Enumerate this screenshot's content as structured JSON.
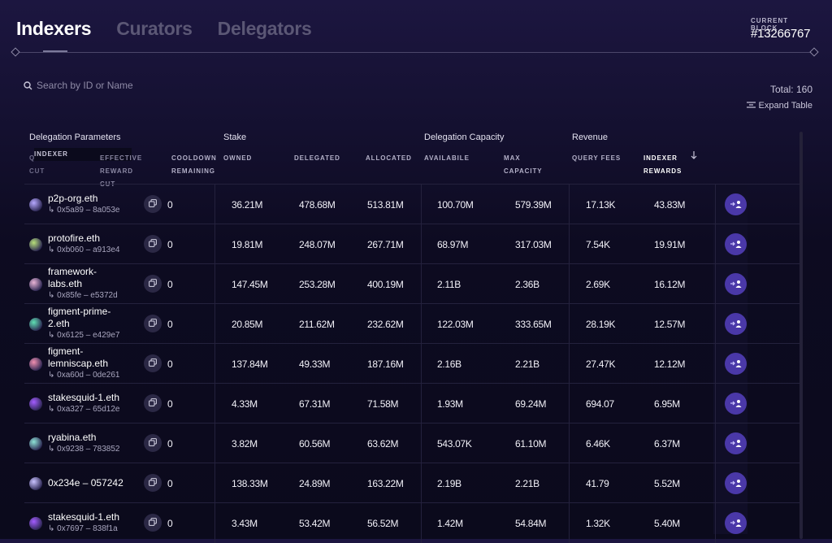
{
  "tabs": [
    {
      "label": "Indexers",
      "active": true
    },
    {
      "label": "Curators",
      "active": false
    },
    {
      "label": "Delegators",
      "active": false
    }
  ],
  "current_block": {
    "label": "CURRENT BLOCK",
    "value": "#13266767"
  },
  "search": {
    "placeholder": "Search by ID or Name"
  },
  "total": "Total: 160",
  "expand_table": "Expand Table",
  "groups": {
    "delegation_parameters": "Delegation Parameters",
    "stake": "Stake",
    "delegation_capacity": "Delegation Capacity",
    "revenue": "Revenue"
  },
  "columns": {
    "indexer": "INDEXER",
    "query_cut": "QUERY FEE CUT",
    "effective_reward_cut": "EFFECTIVE REWARD CUT",
    "cooldown_remaining": "COOLDOWN REMAINING",
    "owned": "OWNED",
    "delegated": "DELEGATED",
    "allocated": "ALLOCATED",
    "available": "AVAILABILE",
    "max_capacity": "MAX CAPACITY",
    "query_fees": "QUERY FEES",
    "indexer_rewards": "INDEXER REWARDS"
  },
  "sort_icon": "arrow-down-icon",
  "rows": [
    {
      "name": "p2p-org.eth",
      "name2": "",
      "address": "↳ 0x5a89 – 8a053e",
      "avatar": "#b6a8ff",
      "cooldown": "0",
      "owned": "36.21M",
      "delegated": "478.68M",
      "allocated": "513.81M",
      "available": "100.70M",
      "max_capacity": "579.39M",
      "query_fees": "17.13K",
      "indexer_rewards": "43.83M"
    },
    {
      "name": "protofire.eth",
      "name2": "",
      "address": "↳ 0xb060 – a913e4",
      "avatar": "#b7e07a",
      "cooldown": "0",
      "owned": "19.81M",
      "delegated": "248.07M",
      "allocated": "267.71M",
      "available": "68.97M",
      "max_capacity": "317.03M",
      "query_fees": "7.54K",
      "indexer_rewards": "19.91M"
    },
    {
      "name": "framework-",
      "name2": "labs.eth",
      "address": "↳ 0x85fe – e5372d",
      "avatar": "#e9b4d6",
      "cooldown": "0",
      "owned": "147.45M",
      "delegated": "253.28M",
      "allocated": "400.19M",
      "available": "2.11B",
      "max_capacity": "2.36B",
      "query_fees": "2.69K",
      "indexer_rewards": "16.12M"
    },
    {
      "name": "figment-prime-",
      "name2": "2.eth",
      "address": "↳ 0x6125 – e429e7",
      "avatar": "#5fe0b3",
      "cooldown": "0",
      "owned": "20.85M",
      "delegated": "211.62M",
      "allocated": "232.62M",
      "available": "122.03M",
      "max_capacity": "333.65M",
      "query_fees": "28.19K",
      "indexer_rewards": "12.57M"
    },
    {
      "name": "figment-",
      "name2": "lemniscap.eth",
      "address": "↳ 0xa60d – 0de261",
      "avatar": "#f08fb0",
      "cooldown": "0",
      "owned": "137.84M",
      "delegated": "49.33M",
      "allocated": "187.16M",
      "available": "2.16B",
      "max_capacity": "2.21B",
      "query_fees": "27.47K",
      "indexer_rewards": "12.12M"
    },
    {
      "name": "stakesquid-1.eth",
      "name2": "",
      "address": "↳ 0xa327 – 65d12e",
      "avatar": "#a35cff",
      "cooldown": "0",
      "owned": "4.33M",
      "delegated": "67.31M",
      "allocated": "71.58M",
      "available": "1.93M",
      "max_capacity": "69.24M",
      "query_fees": "694.07",
      "indexer_rewards": "6.95M"
    },
    {
      "name": "ryabina.eth",
      "name2": "",
      "address": "↳ 0x9238 – 783852",
      "avatar": "#8ee3d6",
      "cooldown": "0",
      "owned": "3.82M",
      "delegated": "60.56M",
      "allocated": "63.62M",
      "available": "543.07K",
      "max_capacity": "61.10M",
      "query_fees": "6.46K",
      "indexer_rewards": "6.37M"
    },
    {
      "name": "0x234e – 057242",
      "name2": "",
      "address": "",
      "avatar": "#c9c2ff",
      "cooldown": "0",
      "owned": "138.33M",
      "delegated": "24.89M",
      "allocated": "163.22M",
      "available": "2.19B",
      "max_capacity": "2.21B",
      "query_fees": "41.79",
      "indexer_rewards": "5.52M"
    },
    {
      "name": "stakesquid-1.eth",
      "name2": "",
      "address": "↳ 0x7697 – 838f1a",
      "avatar": "#a35cff",
      "cooldown": "0",
      "owned": "3.43M",
      "delegated": "53.42M",
      "allocated": "56.52M",
      "available": "1.42M",
      "max_capacity": "54.84M",
      "query_fees": "1.32K",
      "indexer_rewards": "5.40M"
    }
  ]
}
